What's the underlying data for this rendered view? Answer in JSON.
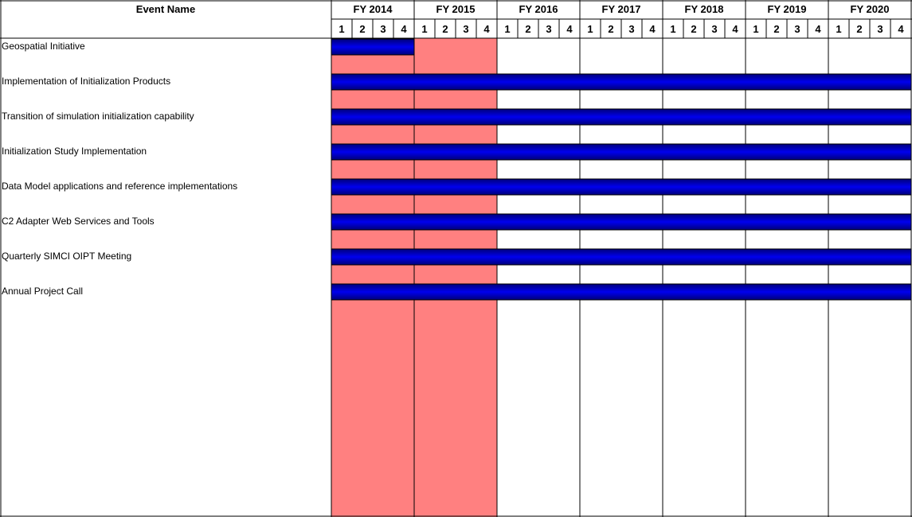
{
  "chart_data": {
    "type": "gantt",
    "column_header": "Event Name",
    "fiscal_years": [
      "FY 2014",
      "FY 2015",
      "FY 2016",
      "FY 2017",
      "FY 2018",
      "FY 2019",
      "FY 2020"
    ],
    "quarters": [
      "1",
      "2",
      "3",
      "4"
    ],
    "highlighted_years": [
      "FY 2014",
      "FY 2015"
    ],
    "events": [
      {
        "name": "Geospatial Initiative",
        "start": "FY 2014 Q1",
        "end": "FY 2014 Q4"
      },
      {
        "name": "Implementation of Initialization Products",
        "start": "FY 2014 Q1",
        "end": "FY 2020 Q4"
      },
      {
        "name": "Transition of simulation initialization capability",
        "start": "FY 2014 Q1",
        "end": "FY 2020 Q4"
      },
      {
        "name": "Initialization Study Implementation",
        "start": "FY 2014 Q1",
        "end": "FY 2020 Q4"
      },
      {
        "name": "Data Model applications and reference implementations",
        "start": "FY 2014 Q1",
        "end": "FY 2020 Q4"
      },
      {
        "name": "C2 Adapter Web Services and Tools",
        "start": "FY 2014 Q1",
        "end": "FY 2020 Q4"
      },
      {
        "name": "Quarterly SIMCI OIPT Meeting",
        "start": "FY 2014 Q1",
        "end": "FY 2020 Q4"
      },
      {
        "name": "Annual Project Call",
        "start": "FY 2014 Q1",
        "end": "FY 2020 Q4"
      }
    ],
    "colors": {
      "highlight": "#ff8080",
      "bar_dark": "#00007a",
      "bar_light": "#0000ee",
      "lines": "#000000",
      "background": "#ffffff"
    }
  }
}
